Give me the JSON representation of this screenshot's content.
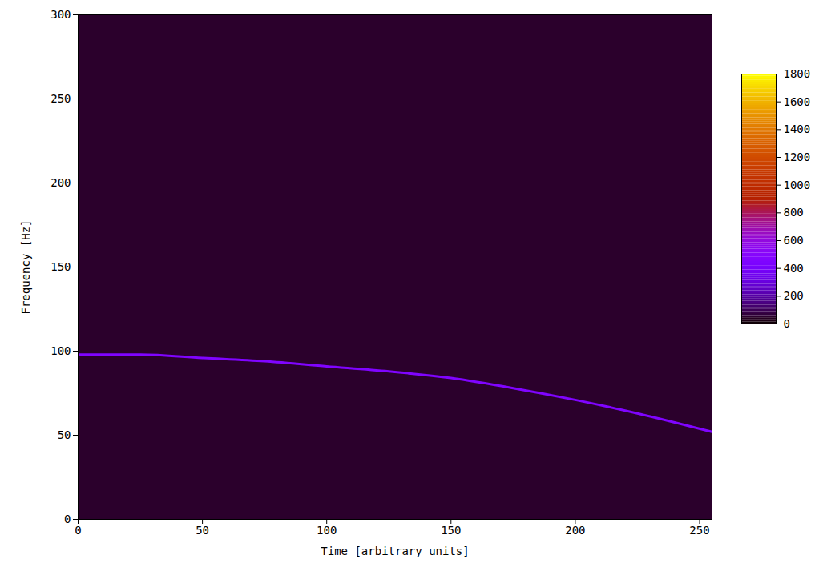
{
  "chart_data": {
    "type": "heatmap",
    "x_label": "Time [arbitrary units]",
    "y_label": "Frequency [Hz]",
    "xlim": [
      0,
      255
    ],
    "xticks": [
      0,
      50,
      100,
      150,
      200,
      250
    ],
    "ylim": [
      0,
      300
    ],
    "yticks": [
      0,
      50,
      100,
      150,
      200,
      250,
      300
    ],
    "background": 50,
    "signal": {
      "x": [
        0,
        25,
        50,
        75,
        100,
        125,
        150,
        175,
        200,
        225,
        255
      ],
      "values": [
        98,
        98,
        96,
        94,
        91,
        88,
        84,
        78,
        71,
        63,
        52
      ],
      "intensity": 450
    },
    "colorbar": {
      "range": [
        0,
        1800
      ],
      "ticks": [
        0,
        200,
        400,
        600,
        800,
        1000,
        1200,
        1400,
        1600,
        1800
      ]
    }
  }
}
